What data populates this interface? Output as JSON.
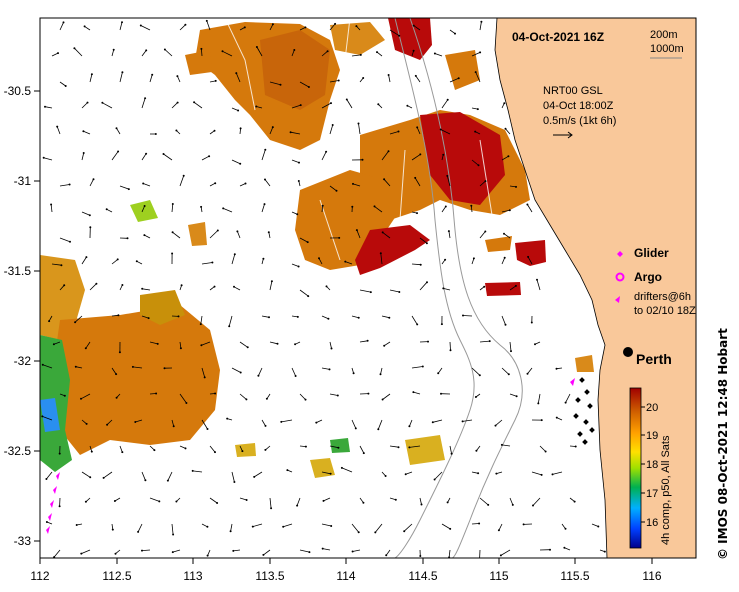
{
  "title": "04-Oct-2021 16Z",
  "bathymetry_legend": [
    "200m",
    "1000m"
  ],
  "current_info": {
    "line1": "NRT00 GSL",
    "line2": "04-Oct 18:00Z",
    "line3": "0.5m/s (1kt 6h)"
  },
  "legend": {
    "glider": "Glider",
    "argo": "Argo",
    "drifters_line1": "drifters@6h",
    "drifters_line2": "to 02/10 18Z"
  },
  "city": "Perth",
  "colorbar": {
    "ticks": [
      "20",
      "19",
      "18",
      "17",
      "16"
    ],
    "label": "4h comp, p50, All Sats",
    "min": 15.5,
    "max": 20.5
  },
  "copyright": "© IMOS 08-Oct-2021 12:48 Hobart",
  "axes": {
    "x_ticks": [
      "112",
      "112.5",
      "113",
      "113.5",
      "114",
      "114.5",
      "115",
      "115.5",
      "116"
    ],
    "y_ticks": [
      "-30.5",
      "-31",
      "-31.5",
      "-32",
      "-32.5",
      "-33"
    ]
  },
  "colors": {
    "land": "#f9c89a",
    "sst_warm": "#c0050a",
    "sst_orange": "#d5790c",
    "sst_green": "#3aa83a",
    "marker": "#ff00ff"
  }
}
